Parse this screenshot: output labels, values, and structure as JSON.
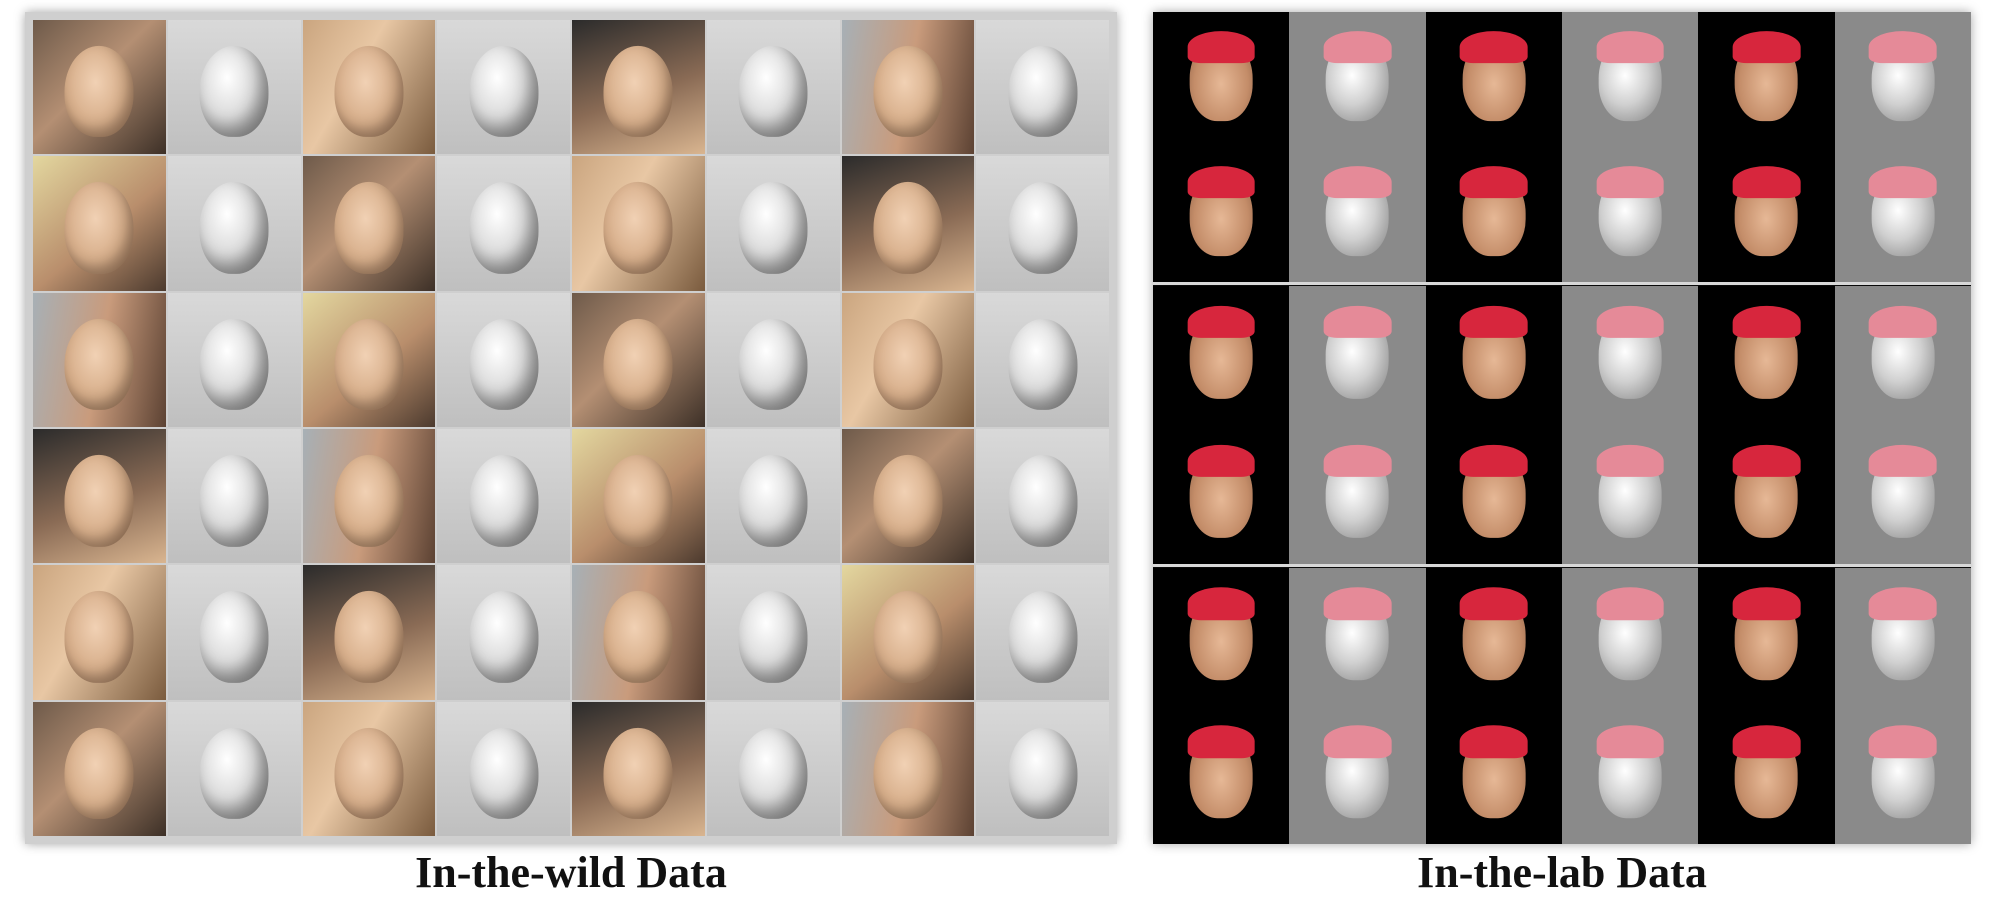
{
  "panels": {
    "wild": {
      "caption": "In-the-wild Data",
      "rows": 6,
      "pairs_per_row": 4
    },
    "lab": {
      "caption": "In-the-lab Data",
      "blocks": 3,
      "rows_per_block": 2,
      "pairs_per_row": 3
    }
  },
  "colors": {
    "lab_background": "#000000",
    "lab_recon_background": "#8a8a8a",
    "cap_color": "#d7263d",
    "separator": "#d8d8d8"
  }
}
